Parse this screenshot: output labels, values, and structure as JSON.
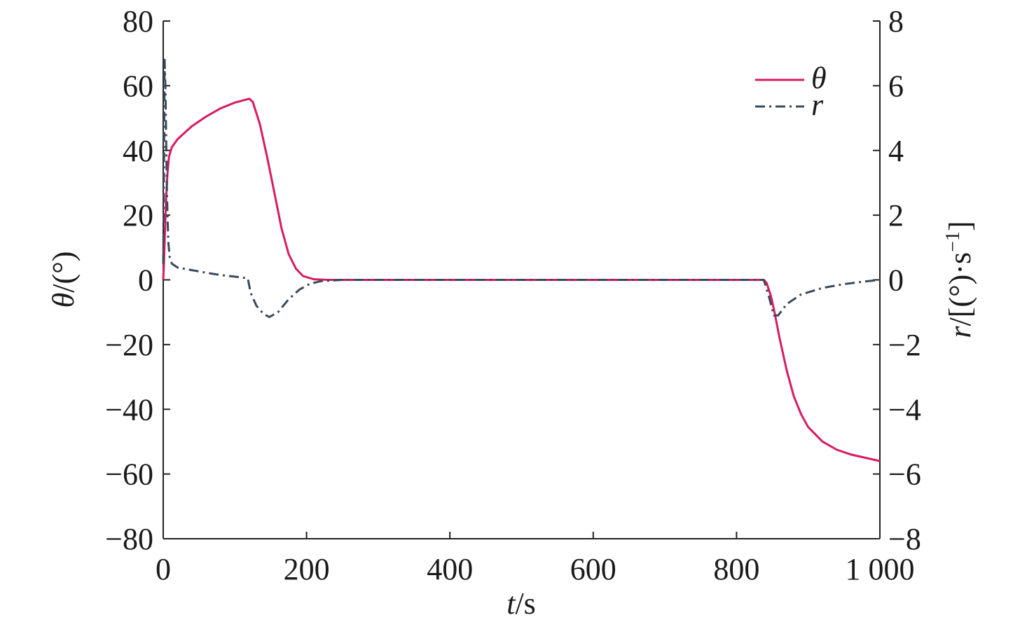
{
  "chart_data": {
    "type": "line",
    "x_axis": {
      "label_parts": {
        "var": "t",
        "unit": "/s"
      },
      "range": [
        0,
        1000
      ],
      "ticks": [
        0,
        200,
        400,
        600,
        800,
        1000
      ],
      "tick_labels": [
        "0",
        "200",
        "400",
        "600",
        "800",
        "1 000"
      ]
    },
    "y_left": {
      "label_parts": {
        "var": "θ",
        "unit": "/(°)"
      },
      "range": [
        -80,
        80
      ],
      "ticks": [
        -80,
        -60,
        -40,
        -20,
        0,
        20,
        40,
        60,
        80
      ],
      "tick_labels": [
        "−80",
        "−60",
        "−40",
        "−20",
        "0",
        "20",
        "40",
        "60",
        "80"
      ]
    },
    "y_right": {
      "label_parts": {
        "var": "r",
        "unit": "/[(°)·s",
        "sup": "−1",
        "close": "]"
      },
      "range": [
        -8,
        8
      ],
      "ticks": [
        -8,
        -6,
        -4,
        -2,
        0,
        2,
        4,
        6,
        8
      ],
      "tick_labels": [
        "−8",
        "−6",
        "−4",
        "−2",
        "0",
        "2",
        "4",
        "6",
        "8"
      ]
    },
    "legend": {
      "position": "top-right",
      "entries": [
        "θ",
        "r"
      ]
    },
    "series": [
      {
        "name": "θ",
        "axis": "left",
        "color": "#d81b60",
        "style": "solid",
        "points": [
          [
            0,
            0
          ],
          [
            1,
            5
          ],
          [
            2,
            12
          ],
          [
            4,
            25
          ],
          [
            6,
            33
          ],
          [
            8,
            38
          ],
          [
            12,
            41
          ],
          [
            20,
            43.5
          ],
          [
            40,
            47.5
          ],
          [
            60,
            50.5
          ],
          [
            80,
            53
          ],
          [
            100,
            54.8
          ],
          [
            120,
            56
          ],
          [
            125,
            55
          ],
          [
            135,
            48
          ],
          [
            145,
            38
          ],
          [
            155,
            27
          ],
          [
            165,
            16
          ],
          [
            175,
            8
          ],
          [
            185,
            3.5
          ],
          [
            195,
            1.2
          ],
          [
            210,
            0.2
          ],
          [
            230,
            0
          ],
          [
            300,
            0
          ],
          [
            500,
            0
          ],
          [
            700,
            0
          ],
          [
            838,
            0
          ],
          [
            842,
            -1
          ],
          [
            848,
            -5
          ],
          [
            853,
            -10
          ],
          [
            860,
            -18
          ],
          [
            870,
            -28
          ],
          [
            880,
            -36
          ],
          [
            890,
            -41.5
          ],
          [
            900,
            -45.5
          ],
          [
            920,
            -50
          ],
          [
            940,
            -52.5
          ],
          [
            960,
            -54
          ],
          [
            980,
            -55
          ],
          [
            1000,
            -56
          ]
        ]
      },
      {
        "name": "r",
        "axis": "right",
        "color": "#3a4a5c",
        "style": "dash-dot",
        "points": [
          [
            0,
            0.5
          ],
          [
            1,
            3
          ],
          [
            2,
            6.8
          ],
          [
            3,
            6
          ],
          [
            4,
            4.5
          ],
          [
            5,
            3
          ],
          [
            6,
            2
          ],
          [
            7,
            1.2
          ],
          [
            9,
            0.7
          ],
          [
            12,
            0.5
          ],
          [
            20,
            0.38
          ],
          [
            40,
            0.3
          ],
          [
            60,
            0.22
          ],
          [
            80,
            0.15
          ],
          [
            100,
            0.1
          ],
          [
            118,
            0.05
          ],
          [
            122,
            -0.4
          ],
          [
            130,
            -0.8
          ],
          [
            140,
            -1.05
          ],
          [
            148,
            -1.15
          ],
          [
            160,
            -1.0
          ],
          [
            175,
            -0.6
          ],
          [
            190,
            -0.3
          ],
          [
            205,
            -0.12
          ],
          [
            220,
            -0.04
          ],
          [
            250,
            0
          ],
          [
            500,
            0
          ],
          [
            838,
            0
          ],
          [
            845,
            -0.5
          ],
          [
            852,
            -1.1
          ],
          [
            858,
            -1.1
          ],
          [
            870,
            -0.75
          ],
          [
            890,
            -0.45
          ],
          [
            920,
            -0.25
          ],
          [
            950,
            -0.13
          ],
          [
            975,
            -0.06
          ],
          [
            1000,
            0
          ]
        ]
      }
    ]
  }
}
